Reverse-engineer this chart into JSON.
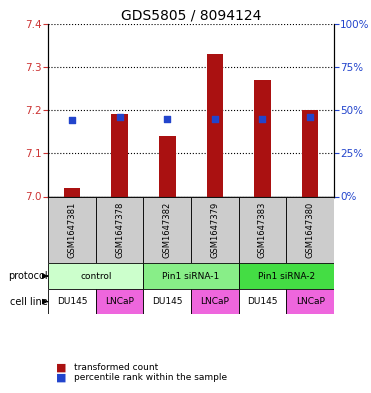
{
  "title": "GDS5805 / 8094124",
  "samples": [
    "GSM1647381",
    "GSM1647378",
    "GSM1647382",
    "GSM1647379",
    "GSM1647383",
    "GSM1647380"
  ],
  "red_values": [
    7.02,
    7.19,
    7.14,
    7.33,
    7.27,
    7.2
  ],
  "blue_values": [
    44,
    46,
    45,
    45,
    45,
    46
  ],
  "ylim_left": [
    7.0,
    7.4
  ],
  "ylim_right": [
    0,
    100
  ],
  "yticks_left": [
    7.0,
    7.1,
    7.2,
    7.3,
    7.4
  ],
  "yticks_right": [
    0,
    25,
    50,
    75,
    100
  ],
  "bar_color": "#aa1111",
  "dot_color": "#2244cc",
  "bar_width": 0.35,
  "protocols": [
    {
      "label": "control",
      "span": [
        0,
        2
      ],
      "color": "#ccffcc"
    },
    {
      "label": "Pin1 siRNA-1",
      "span": [
        2,
        4
      ],
      "color": "#88ee88"
    },
    {
      "label": "Pin1 siRNA-2",
      "span": [
        4,
        6
      ],
      "color": "#44dd44"
    }
  ],
  "cell_colors": [
    "#ffffff",
    "#ee66dd",
    "#ffffff",
    "#ee66dd",
    "#ffffff",
    "#ee66dd"
  ],
  "cell_labels": [
    "DU145",
    "LNCaP",
    "DU145",
    "LNCaP",
    "DU145",
    "LNCaP"
  ],
  "protocol_label": "protocol",
  "cellline_label": "cell line",
  "legend_red": "transformed count",
  "legend_blue": "percentile rank within the sample",
  "title_fontsize": 10,
  "tick_fontsize": 7.5,
  "bg_color": "#cccccc"
}
